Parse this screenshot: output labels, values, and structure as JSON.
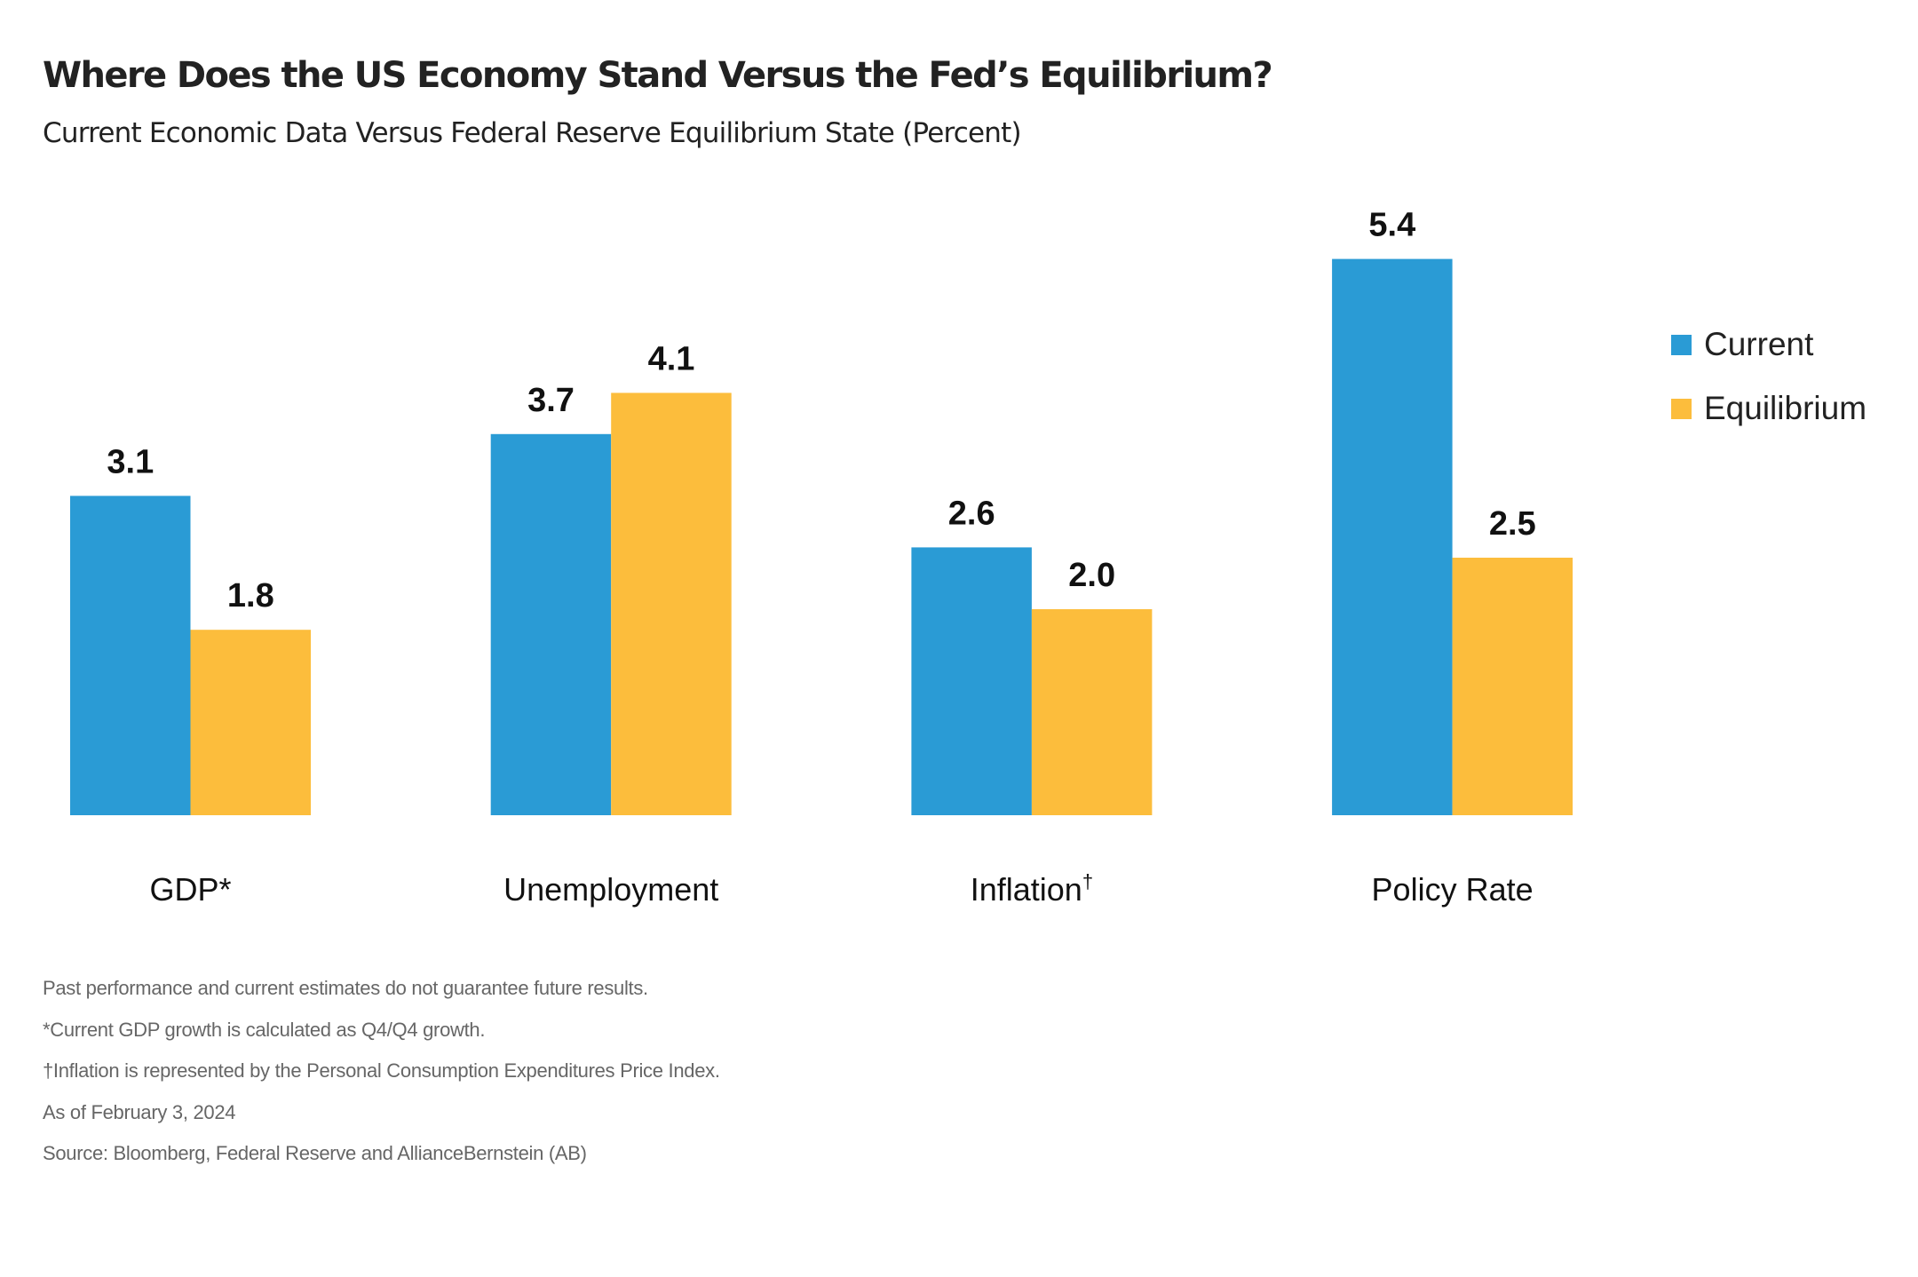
{
  "colors": {
    "current": "#2A9BD5",
    "equilibrium": "#FCBD3C",
    "text": "#222222",
    "footnote": "#666666"
  },
  "chart_data": {
    "type": "bar",
    "title": "Where Does the US Economy Stand Versus the Fed’s Equilibrium?",
    "subtitle": "Current Economic Data Versus Federal Reserve Equilibrium State (Percent)",
    "categories": [
      "GDP*",
      "Unemployment",
      "Inflation†",
      "Policy Rate"
    ],
    "category_labels": [
      {
        "text": "GDP*",
        "sup": ""
      },
      {
        "text": "Unemployment",
        "sup": ""
      },
      {
        "text": "Inflation",
        "sup": "†"
      },
      {
        "text": "Policy Rate",
        "sup": ""
      }
    ],
    "series": [
      {
        "name": "Current",
        "values": [
          3.1,
          3.7,
          2.6,
          5.4
        ],
        "labels": [
          "3.1",
          "3.7",
          "2.6",
          "5.4"
        ]
      },
      {
        "name": "Equilibrium",
        "values": [
          1.8,
          4.1,
          2.0,
          2.5
        ],
        "labels": [
          "1.8",
          "4.1",
          "2.0",
          "2.5"
        ]
      }
    ],
    "xlabel": "",
    "ylabel": "Percent",
    "ylim": [
      0,
      5.4
    ],
    "grid": false,
    "axis_visible": false,
    "legend_position": "right"
  },
  "legend": [
    {
      "label": "Current"
    },
    {
      "label": "Equilibrium"
    }
  ],
  "footnotes": [
    "Past performance and current estimates do not guarantee future results.",
    "*Current GDP growth is calculated as Q4/Q4 growth.",
    "†Inflation is represented by the Personal Consumption Expenditures Price Index.",
    "As of February 3, 2024",
    "Source: Bloomberg, Federal Reserve and AllianceBernstein (AB)"
  ]
}
